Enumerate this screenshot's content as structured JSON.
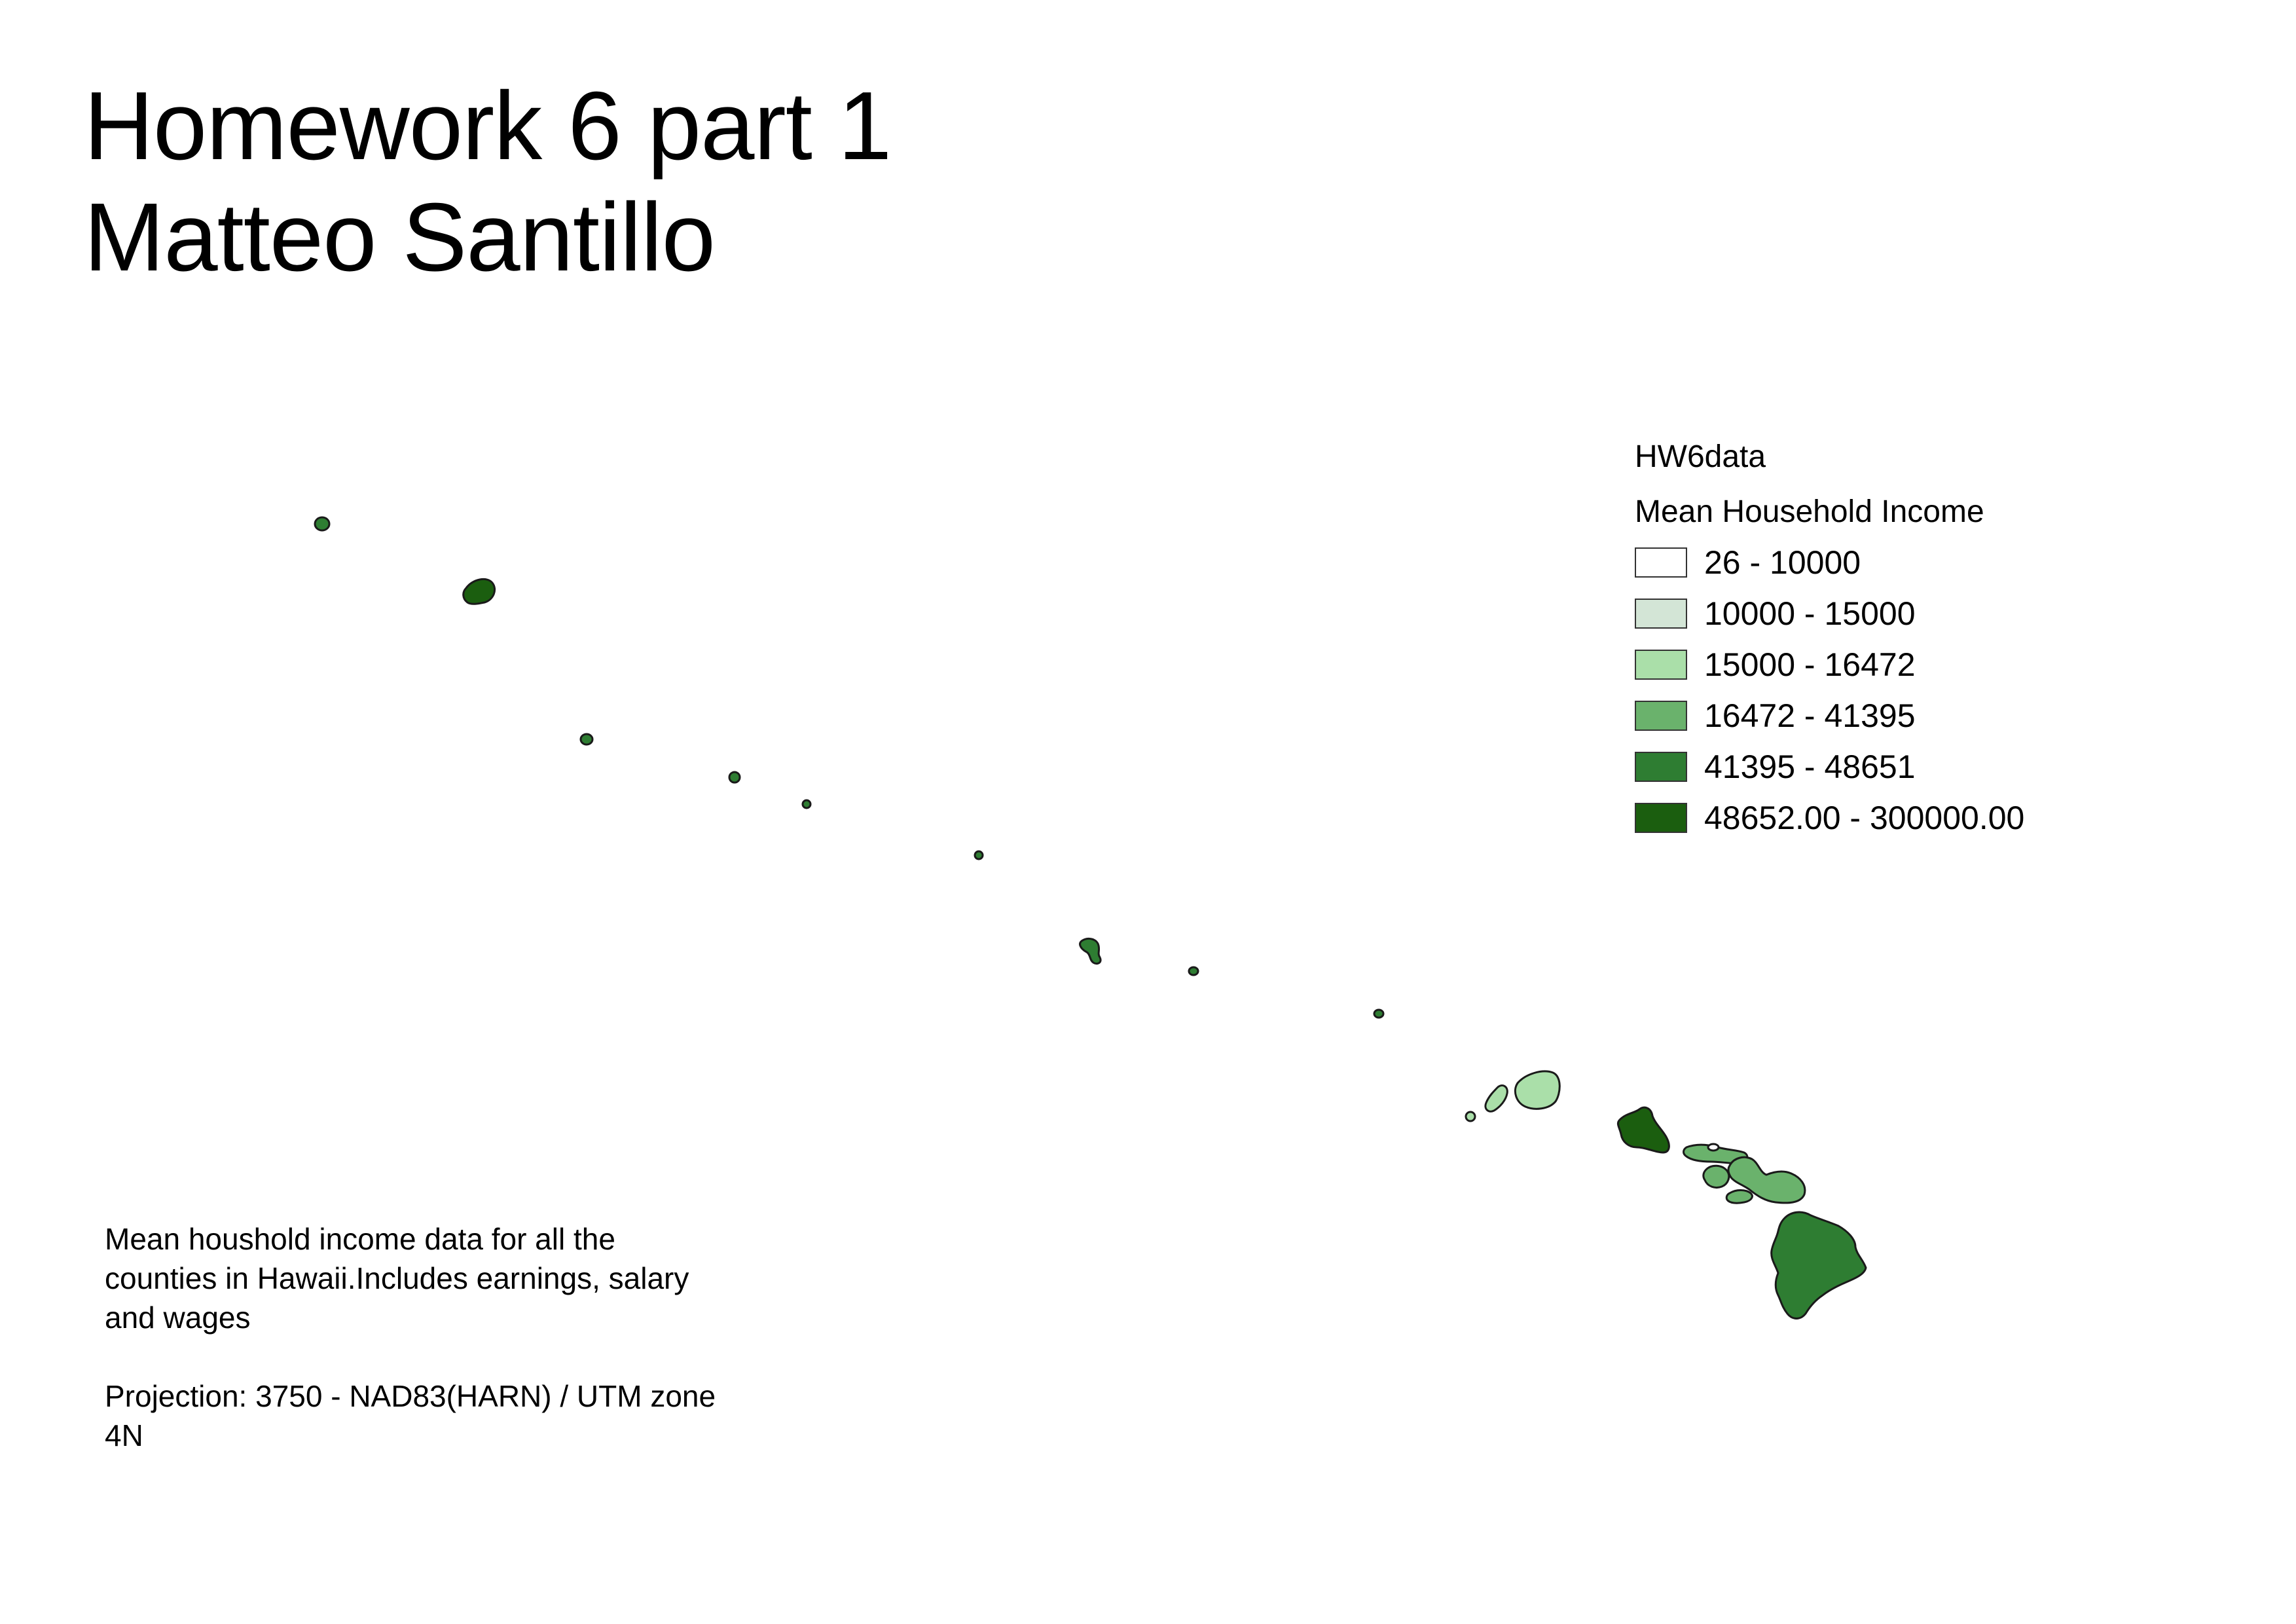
{
  "title": {
    "line1": "Homework 6 part 1",
    "line2": "Matteo Santillo"
  },
  "legend": {
    "layer_name": "HW6data",
    "field_title": "Mean Household Income",
    "classes": [
      {
        "label": "26 - 10000",
        "color": "#ffffff"
      },
      {
        "label": "10000 - 15000",
        "color": "#d3e5d6"
      },
      {
        "label": "15000 - 16472",
        "color": "#aadfa9"
      },
      {
        "label": "16472 - 41395",
        "color": "#6ab26c"
      },
      {
        "label": "41395 - 48651",
        "color": "#2e7d32"
      },
      {
        "label": "48652.00 - 300000.00",
        "color": "#1b5e0f"
      }
    ]
  },
  "notes": {
    "description": "Mean houshold income data for all the counties in Hawaii.Includes earnings, salary and wages",
    "projection": "Projection: 3750 - NAD83(HARN) / UTM zone 4N"
  },
  "map": {
    "features": [
      {
        "name": "kure-atoll",
        "class": 4
      },
      {
        "name": "pearl-and-hermes",
        "class": 5
      },
      {
        "name": "lisianski",
        "class": 4
      },
      {
        "name": "laysan",
        "class": 4
      },
      {
        "name": "maro-reef",
        "class": 4
      },
      {
        "name": "gardner-pinnacles",
        "class": 4
      },
      {
        "name": "french-frigate-shoals",
        "class": 4
      },
      {
        "name": "necker",
        "class": 4
      },
      {
        "name": "nihoa",
        "class": 4
      },
      {
        "name": "lehua",
        "class": 2
      },
      {
        "name": "niihau",
        "class": 2
      },
      {
        "name": "kauai",
        "class": 2
      },
      {
        "name": "oahu",
        "class": 5
      },
      {
        "name": "molokai",
        "class": 3
      },
      {
        "name": "kalawao",
        "class": 0
      },
      {
        "name": "lanai",
        "class": 3
      },
      {
        "name": "maui",
        "class": 3
      },
      {
        "name": "kahoolawe",
        "class": 3
      },
      {
        "name": "hawaii-big-island",
        "class": 4
      }
    ]
  }
}
